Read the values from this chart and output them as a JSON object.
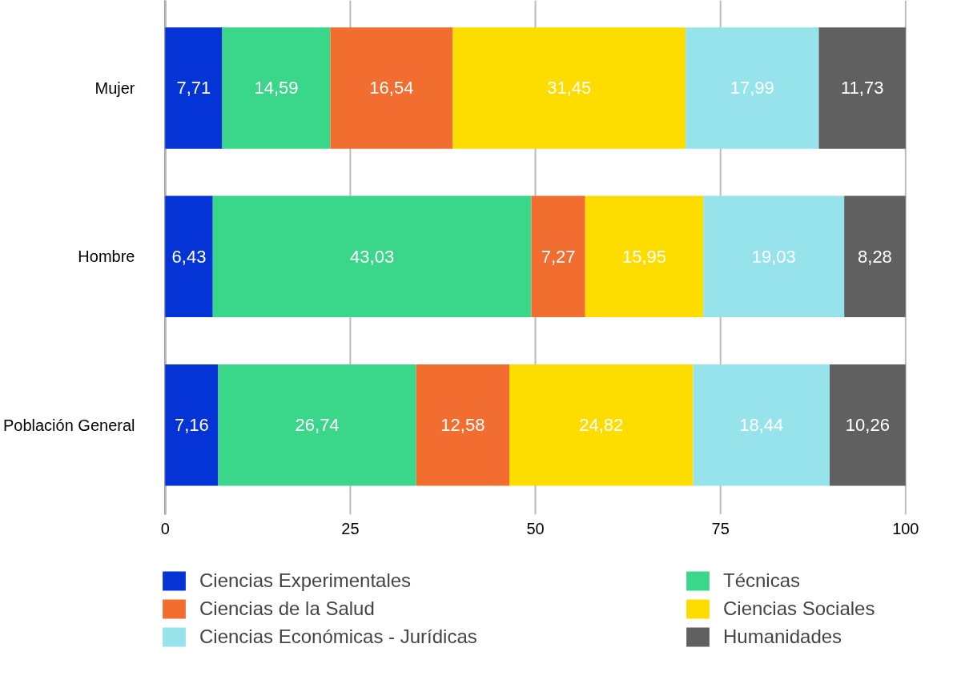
{
  "chart_data": {
    "type": "bar",
    "orientation": "horizontal",
    "stacked": true,
    "categories": [
      "Mujer",
      "Hombre",
      "Población General"
    ],
    "series": [
      {
        "name": "Ciencias Experimentales",
        "color": "#0433d6",
        "values": [
          7.71,
          6.43,
          7.16
        ],
        "value_labels": [
          "7,71",
          "6,43",
          "7,16"
        ]
      },
      {
        "name": "Técnicas",
        "color": "#3ad68a",
        "values": [
          14.59,
          43.03,
          26.74
        ],
        "value_labels": [
          "14,59",
          "43,03",
          "26,74"
        ]
      },
      {
        "name": "Ciencias de la Salud",
        "color": "#f26d30",
        "values": [
          16.54,
          7.27,
          12.58
        ],
        "value_labels": [
          "16,54",
          "7,27",
          "12,58"
        ]
      },
      {
        "name": "Ciencias Sociales",
        "color": "#fddc00",
        "values": [
          31.45,
          15.95,
          24.82
        ],
        "value_labels": [
          "31,45",
          "15,95",
          "24,82"
        ]
      },
      {
        "name": "Ciencias Económicas - Jurídicas",
        "color": "#97e3ec",
        "values": [
          17.99,
          19.03,
          18.44
        ],
        "value_labels": [
          "17,99",
          "19,03",
          "18,44"
        ]
      },
      {
        "name": "Humanidades",
        "color": "#606060",
        "values": [
          11.73,
          8.28,
          10.26
        ],
        "value_labels": [
          "11,73",
          "8,28",
          "10,26"
        ]
      }
    ],
    "xlim": [
      0,
      100.1
    ],
    "xticks": [
      0,
      25,
      50,
      75,
      100
    ],
    "grid": "x",
    "legend": "bottom"
  }
}
